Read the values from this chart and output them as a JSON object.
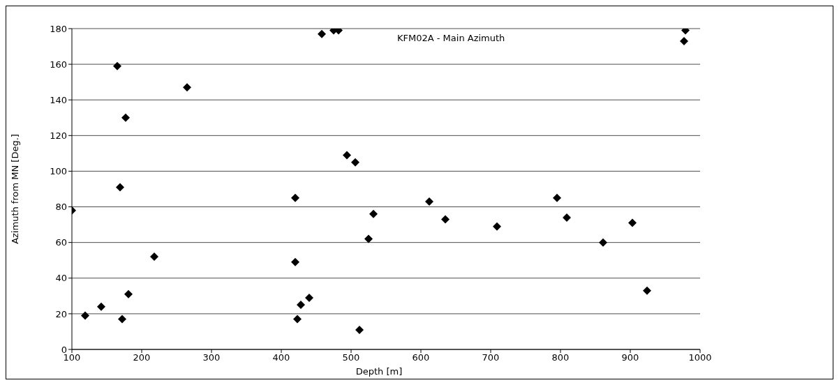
{
  "chart_data": {
    "type": "scatter",
    "title": "KFM02A - Main Azimuth",
    "xlabel": "Depth [m]",
    "ylabel": "Azimuth  from MN [Deg.]",
    "x": [
      100,
      119,
      142,
      165,
      169,
      172,
      177,
      181,
      218,
      265,
      420,
      420,
      423,
      428,
      440,
      458,
      475,
      482,
      494,
      506,
      512,
      525,
      532,
      612,
      635,
      709,
      795,
      809,
      861,
      903,
      924,
      977,
      979
    ],
    "series": [
      {
        "color": "#000000",
        "values": [
          78,
          19,
          24,
          159,
          91,
          17,
          130,
          31,
          52,
          147,
          85,
          49,
          17,
          25,
          29,
          177,
          179,
          179,
          109,
          105,
          11,
          62,
          76,
          83,
          73,
          69,
          85,
          74,
          60,
          71,
          33,
          173,
          179
        ]
      }
    ],
    "xlim": [
      100,
      1000
    ],
    "xticks": [
      100,
      200,
      300,
      400,
      500,
      600,
      700,
      800,
      900,
      1000
    ],
    "ylim": [
      0,
      180
    ],
    "yticks": [
      0,
      20,
      40,
      60,
      80,
      100,
      120,
      140,
      160,
      180
    ],
    "grid": "y",
    "marker": "diamond"
  }
}
